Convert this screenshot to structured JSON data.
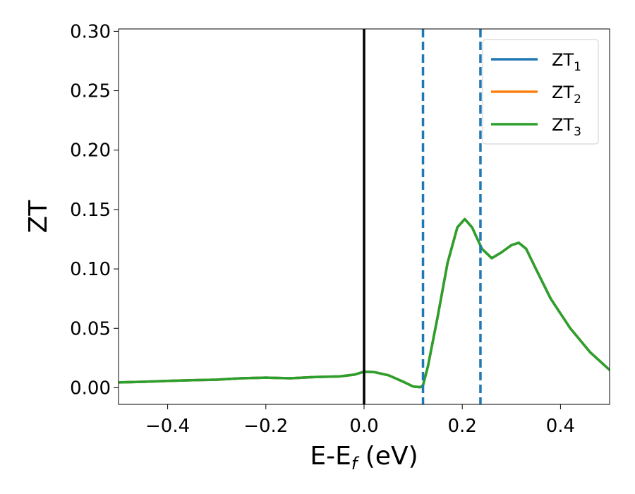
{
  "chart_data": {
    "type": "line",
    "xlabel": {
      "main": "E-E",
      "sub": "f",
      "suffix": " (eV)"
    },
    "ylabel": "ZT",
    "xlim": [
      -0.5,
      0.5
    ],
    "ylim": [
      -0.014,
      0.302
    ],
    "xticks": [
      -0.4,
      -0.2,
      0.0,
      0.2,
      0.4
    ],
    "xtick_labels": [
      "−0.4",
      "−0.2",
      "0.0",
      "0.2",
      "0.4"
    ],
    "yticks": [
      0.0,
      0.05,
      0.1,
      0.15,
      0.2,
      0.25,
      0.3
    ],
    "ytick_labels": [
      "0.00",
      "0.05",
      "0.10",
      "0.15",
      "0.20",
      "0.25",
      "0.30"
    ],
    "grid": false,
    "legend_position": "upper-right",
    "colors": {
      "ZT1": "#1f77b4",
      "ZT2": "#ff7f0e",
      "ZT3": "#2ca02c",
      "zero_line": "#000000"
    },
    "vertical_lines": [
      {
        "x": 0.0,
        "style": "solid",
        "color": "#000000"
      },
      {
        "x": 0.12,
        "style": "dashed",
        "color": "#1f77b4"
      },
      {
        "x": 0.237,
        "style": "dashed",
        "color": "#1f77b4"
      }
    ],
    "series": [
      {
        "name": "ZT",
        "sub": "1",
        "color": "#1f77b4",
        "x": [
          -0.5,
          -0.45,
          -0.4,
          -0.35,
          -0.3,
          -0.25,
          -0.2,
          -0.15,
          -0.1,
          -0.05,
          -0.02,
          0.0,
          0.02,
          0.05,
          0.08,
          0.1,
          0.115,
          0.12,
          0.13,
          0.15,
          0.17,
          0.19,
          0.205,
          0.22,
          0.24,
          0.26,
          0.28,
          0.3,
          0.315,
          0.33,
          0.35,
          0.38,
          0.42,
          0.46,
          0.5
        ],
        "y": [
          0.0045,
          0.005,
          0.0058,
          0.0063,
          0.0068,
          0.008,
          0.0085,
          0.008,
          0.009,
          0.0095,
          0.011,
          0.0135,
          0.0132,
          0.0105,
          0.005,
          0.001,
          0.0005,
          0.002,
          0.018,
          0.06,
          0.105,
          0.135,
          0.142,
          0.135,
          0.117,
          0.109,
          0.114,
          0.12,
          0.122,
          0.117,
          0.1,
          0.075,
          0.05,
          0.03,
          0.015
        ]
      },
      {
        "name": "ZT",
        "sub": "2",
        "color": "#ff7f0e",
        "x": [
          -0.5,
          -0.45,
          -0.4,
          -0.35,
          -0.3,
          -0.25,
          -0.2,
          -0.15,
          -0.1,
          -0.05,
          -0.02,
          0.0,
          0.02,
          0.05,
          0.08,
          0.1,
          0.115,
          0.12,
          0.13,
          0.15,
          0.17,
          0.19,
          0.205,
          0.22,
          0.24,
          0.26,
          0.28,
          0.3,
          0.315,
          0.33,
          0.35,
          0.38,
          0.42,
          0.46,
          0.5
        ],
        "y": [
          0.0045,
          0.005,
          0.0058,
          0.0063,
          0.0068,
          0.008,
          0.0085,
          0.008,
          0.009,
          0.0095,
          0.011,
          0.0135,
          0.0132,
          0.0105,
          0.005,
          0.001,
          0.0005,
          0.002,
          0.018,
          0.06,
          0.105,
          0.135,
          0.142,
          0.135,
          0.117,
          0.109,
          0.114,
          0.12,
          0.122,
          0.117,
          0.1,
          0.075,
          0.05,
          0.03,
          0.015
        ]
      },
      {
        "name": "ZT",
        "sub": "3",
        "color": "#2ca02c",
        "x": [
          -0.5,
          -0.45,
          -0.4,
          -0.35,
          -0.3,
          -0.25,
          -0.2,
          -0.15,
          -0.1,
          -0.05,
          -0.02,
          0.0,
          0.02,
          0.05,
          0.08,
          0.1,
          0.115,
          0.12,
          0.13,
          0.15,
          0.17,
          0.19,
          0.205,
          0.22,
          0.24,
          0.26,
          0.28,
          0.3,
          0.315,
          0.33,
          0.35,
          0.38,
          0.42,
          0.46,
          0.5
        ],
        "y": [
          0.0045,
          0.005,
          0.0058,
          0.0063,
          0.0068,
          0.008,
          0.0085,
          0.008,
          0.009,
          0.0095,
          0.011,
          0.0135,
          0.0132,
          0.0105,
          0.005,
          0.001,
          0.0005,
          0.002,
          0.018,
          0.06,
          0.105,
          0.135,
          0.142,
          0.135,
          0.117,
          0.109,
          0.114,
          0.12,
          0.122,
          0.117,
          0.1,
          0.075,
          0.05,
          0.03,
          0.015
        ]
      }
    ]
  }
}
